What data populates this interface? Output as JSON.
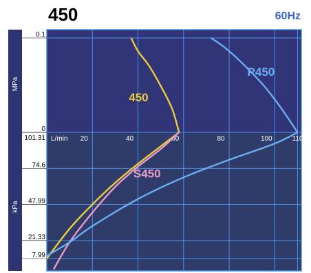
{
  "header": {
    "model": "450",
    "frequency": "60Hz"
  },
  "colors": {
    "upper_panel": "#313477",
    "lower_panel": "#2f3c6a",
    "grid": "#4a8fe8",
    "left_bar": "#2e3470",
    "frequency_text": "#3a66c4",
    "series_450": "#e8cc3c",
    "series_s450": "#e89ac8",
    "series_p450": "#6aaef0"
  },
  "chart_data": [
    {
      "type": "line",
      "panel": "pressure",
      "ylabel": "MPa",
      "ylim": [
        0,
        0.1
      ],
      "yticks": [
        0,
        0.1
      ],
      "xlim": [
        0,
        110
      ],
      "series": [
        {
          "name": "450",
          "color": "#e8cc3c",
          "points": [
            [
              37,
              0.1
            ],
            [
              40,
              0.086
            ],
            [
              45,
              0.07
            ],
            [
              50,
              0.049
            ],
            [
              55,
              0.025
            ],
            [
              58,
              0
            ]
          ]
        },
        {
          "name": "P450",
          "color": "#6aaef0",
          "points": [
            [
              72,
              0.1
            ],
            [
              78,
              0.09
            ],
            [
              85,
              0.075
            ],
            [
              95,
              0.05
            ],
            [
              103,
              0.025
            ],
            [
              110,
              0
            ]
          ]
        }
      ]
    },
    {
      "type": "line",
      "panel": "vacuum",
      "ylabel": "kPa",
      "xlabel": "L/min",
      "xticks": [
        20,
        40,
        60,
        80,
        100,
        110
      ],
      "xlim": [
        0,
        110
      ],
      "ylim": [
        0,
        101.31
      ],
      "yticks": [
        101.31,
        74.6,
        47.99,
        21.33,
        7.99
      ],
      "series": [
        {
          "name": "450",
          "color": "#e8cc3c",
          "points": [
            [
              0,
              7.99
            ],
            [
              10,
              30
            ],
            [
              20,
              48
            ],
            [
              30,
              64
            ],
            [
              40,
              78
            ],
            [
              50,
              91
            ],
            [
              58,
              101.31
            ]
          ]
        },
        {
          "name": "S450",
          "color": "#e89ac8",
          "points": [
            [
              3,
              0
            ],
            [
              10,
              20
            ],
            [
              20,
              42
            ],
            [
              30,
              61
            ],
            [
              40,
              76
            ],
            [
              50,
              89
            ],
            [
              58,
              101.31
            ]
          ]
        },
        {
          "name": "P450",
          "color": "#6aaef0",
          "points": [
            [
              0,
              10
            ],
            [
              10,
              20
            ],
            [
              20,
              32
            ],
            [
              40,
              52
            ],
            [
              60,
              68
            ],
            [
              80,
              81
            ],
            [
              100,
              93
            ],
            [
              110,
              101.31
            ]
          ]
        }
      ]
    }
  ]
}
